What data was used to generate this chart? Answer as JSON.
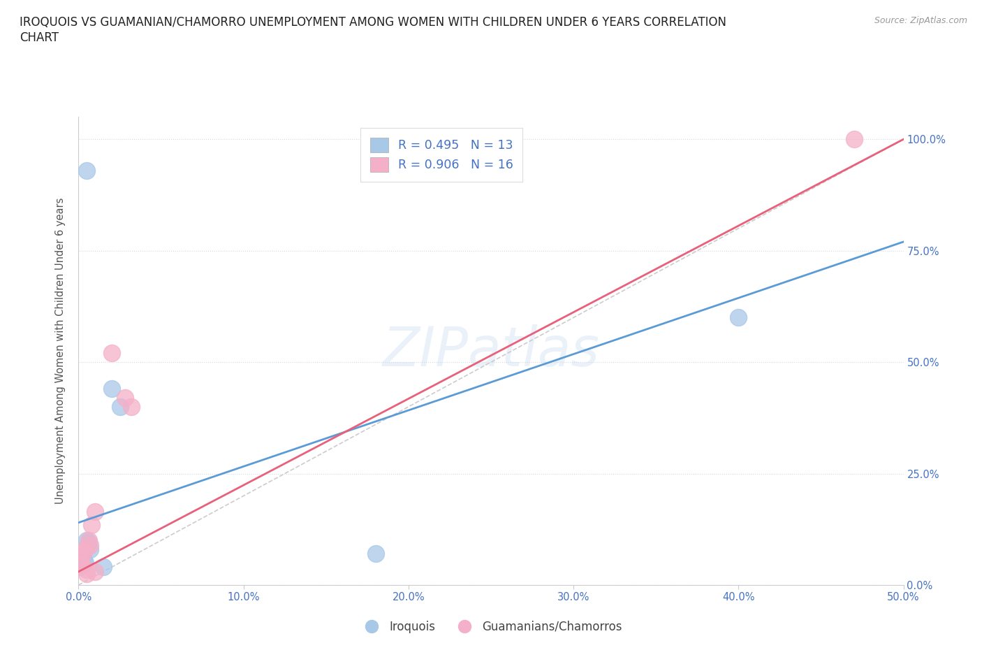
{
  "title_line1": "IROQUOIS VS GUAMANIAN/CHAMORRO UNEMPLOYMENT AMONG WOMEN WITH CHILDREN UNDER 6 YEARS CORRELATION",
  "title_line2": "CHART",
  "source": "Source: ZipAtlas.com",
  "ylabel": "Unemployment Among Women with Children Under 6 years",
  "watermark": "ZIPatlas",
  "xlim": [
    0.0,
    0.5
  ],
  "ylim": [
    0.0,
    1.05
  ],
  "xticks": [
    0.0,
    0.1,
    0.2,
    0.3,
    0.4,
    0.5
  ],
  "yticks": [
    0.0,
    0.25,
    0.5,
    0.75,
    1.0
  ],
  "ytick_labels": [
    "0.0%",
    "25.0%",
    "50.0%",
    "75.0%",
    "100.0%"
  ],
  "xtick_labels": [
    "0.0%",
    "10.0%",
    "20.0%",
    "30.0%",
    "40.0%",
    "50.0%"
  ],
  "iroquois_color": "#a8c8e8",
  "chamorro_color": "#f4b0c8",
  "iroquois_line_color": "#5b9bd5",
  "chamorro_line_color": "#e8607a",
  "iroquois_R": 0.495,
  "iroquois_N": 13,
  "chamorro_R": 0.906,
  "chamorro_N": 16,
  "iroquois_points": [
    [
      0.005,
      0.93
    ],
    [
      0.02,
      0.44
    ],
    [
      0.025,
      0.4
    ],
    [
      0.005,
      0.1
    ],
    [
      0.006,
      0.095
    ],
    [
      0.007,
      0.08
    ],
    [
      0.002,
      0.065
    ],
    [
      0.003,
      0.055
    ],
    [
      0.004,
      0.05
    ],
    [
      0.001,
      0.04
    ],
    [
      0.015,
      0.04
    ],
    [
      0.18,
      0.07
    ],
    [
      0.4,
      0.6
    ]
  ],
  "chamorro_points": [
    [
      0.02,
      0.52
    ],
    [
      0.028,
      0.42
    ],
    [
      0.032,
      0.4
    ],
    [
      0.01,
      0.165
    ],
    [
      0.008,
      0.135
    ],
    [
      0.006,
      0.1
    ],
    [
      0.007,
      0.09
    ],
    [
      0.005,
      0.085
    ],
    [
      0.003,
      0.075
    ],
    [
      0.002,
      0.065
    ],
    [
      0.001,
      0.055
    ],
    [
      0.001,
      0.045
    ],
    [
      0.005,
      0.035
    ],
    [
      0.01,
      0.03
    ],
    [
      0.005,
      0.025
    ],
    [
      0.47,
      1.0
    ]
  ],
  "legend_text_color": "#4472c4",
  "axis_label_color": "#4472c4",
  "grid_color": "#d0d8e8",
  "background_color": "#ffffff",
  "iroquois_label": "Iroquois",
  "chamorro_label": "Guamanians/Chamorros"
}
